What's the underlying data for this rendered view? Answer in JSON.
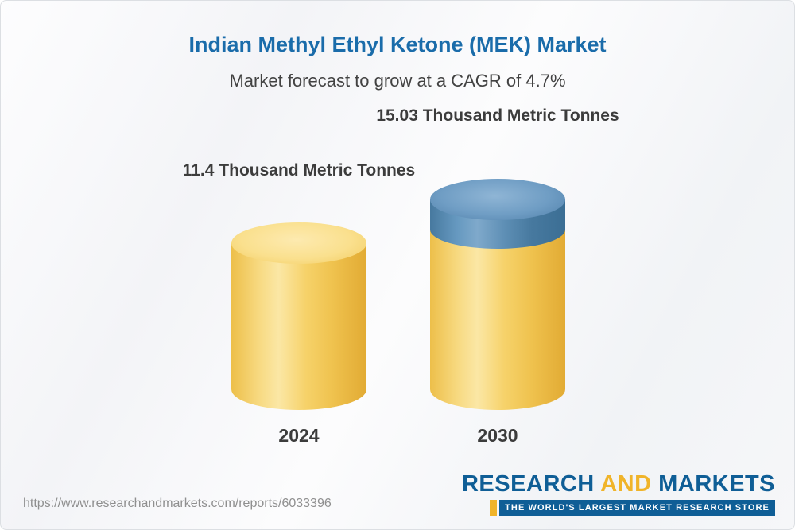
{
  "chart_data": {
    "type": "bar",
    "bar_style": "3d-cylinder",
    "title": "Indian Methyl Ethyl Ketone (MEK) Market",
    "subtitle": "Market forecast to grow at a CAGR of 4.7%",
    "cagr_percent": 4.7,
    "unit": "Thousand Metric Tonnes",
    "categories": [
      "2024",
      "2030"
    ],
    "values": [
      11.4,
      15.03
    ],
    "bars": [
      {
        "category": "2024",
        "value": 11.4,
        "label": "11.4 Thousand Metric Tonnes",
        "color": "#f6d26a"
      },
      {
        "category": "2030",
        "value": 15.03,
        "label": "15.03 Thousand Metric Tonnes",
        "color": "#f6d26a",
        "top_segment_color": "#5e8fb5"
      }
    ],
    "ylim": [
      0,
      15.03
    ],
    "grid": false,
    "legend": "none"
  },
  "footer": {
    "url": "https://www.researchandmarkets.com/reports/6033396",
    "logo": {
      "research": "RESEARCH",
      "and": "AND",
      "markets": "MARKETS",
      "tagline": "THE WORLD'S LARGEST MARKET RESEARCH STORE"
    }
  },
  "colors": {
    "title_blue": "#1a6caa",
    "subtitle_gray": "#424242",
    "bar_yellow": "#f6d26a",
    "bar_blue": "#5e8fb5",
    "logo_blue": "#0f5e96",
    "logo_gold": "#f0b42a"
  }
}
